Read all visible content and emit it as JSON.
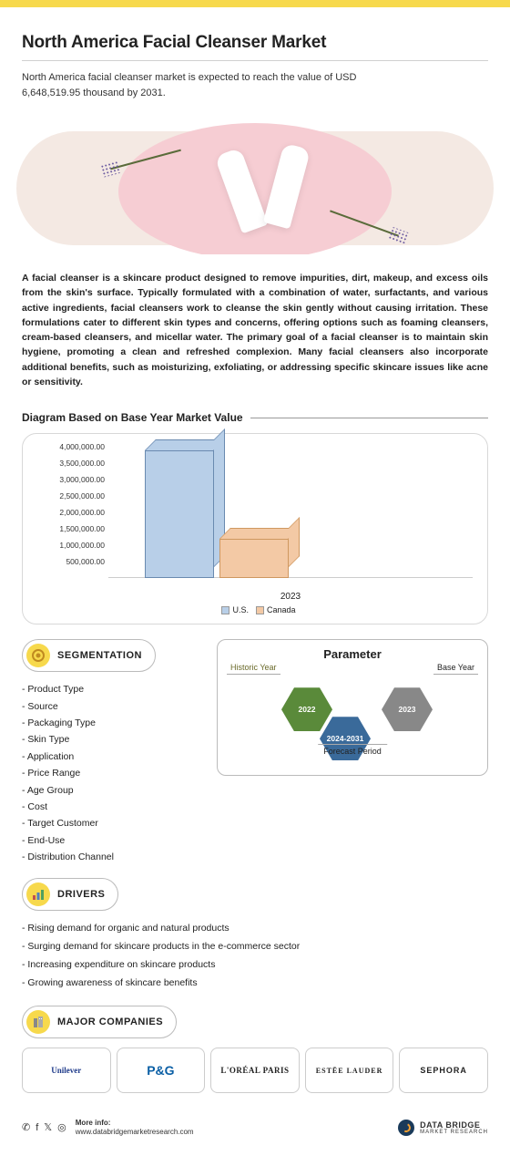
{
  "header": {
    "title": "North America Facial Cleanser Market",
    "subtitle": "North America facial cleanser market is expected to reach the value of USD 6,648,519.95 thousand by 2031."
  },
  "description": "A facial cleanser is a skincare product designed to remove impurities, dirt, makeup, and excess oils from the skin's surface. Typically formulated with a combination of water, surfactants, and various active ingredients, facial cleansers work to cleanse the skin gently without causing irritation. These formulations cater to different skin types and concerns, offering options such as foaming cleansers, cream-based cleansers, and micellar water. The primary goal of a facial cleanser is to maintain skin hygiene, promoting a clean and refreshed complexion. Many facial cleansers also incorporate additional benefits, such as moisturizing, exfoliating, or addressing specific skincare issues like acne or sensitivity.",
  "chart": {
    "heading": "Diagram Based on Base Year Market Value",
    "type": "bar-3d",
    "ylim": [
      0,
      4000000
    ],
    "ytick_step": 500000,
    "yticks": [
      "500,000.00",
      "1,000,000.00",
      "1,500,000.00",
      "2,000,000.00",
      "2,500,000.00",
      "3,000,000.00",
      "3,500,000.00",
      "4,000,000.00"
    ],
    "x_label": "2023",
    "series": [
      {
        "name": "U.S.",
        "value": 3900000,
        "color": "#b8cfe8",
        "border": "#6a8ab0"
      },
      {
        "name": "Canada",
        "value": 1200000,
        "color": "#f3c9a5",
        "border": "#cf9860"
      }
    ],
    "background": "#ffffff",
    "axis_color": "#333333"
  },
  "segmentation": {
    "title": "SEGMENTATION",
    "items": [
      "Product Type",
      "Source",
      "Packaging Type",
      "Skin Type",
      "Application",
      "Price Range",
      "Age Group",
      "Cost",
      "Target Customer",
      "End-Use",
      "Distribution Channel"
    ]
  },
  "parameter": {
    "title": "Parameter",
    "historic_label": "Historic Year",
    "base_label": "Base Year",
    "forecast_label": "Forecast Period",
    "historic_year": "2022",
    "base_year": "2023",
    "forecast_range": "2024-2031",
    "colors": {
      "historic": "#5a8a3a",
      "forecast": "#3a6a9a",
      "base": "#888888"
    }
  },
  "drivers": {
    "title": "DRIVERS",
    "items": [
      "Rising demand for organic and natural products",
      "Surging demand for skincare products in the e-commerce sector",
      "Increasing expenditure on skincare products",
      "Growing awareness of skincare benefits"
    ]
  },
  "companies": {
    "title": "MAJOR COMPANIES",
    "items": [
      "Unilever",
      "P&G",
      "L'ORÉAL PARIS",
      "ESTĒE LAUDER",
      "SEPHORA"
    ]
  },
  "footer": {
    "more": "More info:",
    "url": "www.databridgemarketresearch.com",
    "brand": "DATA BRIDGE",
    "brand_sub": "MARKET RESEARCH"
  }
}
